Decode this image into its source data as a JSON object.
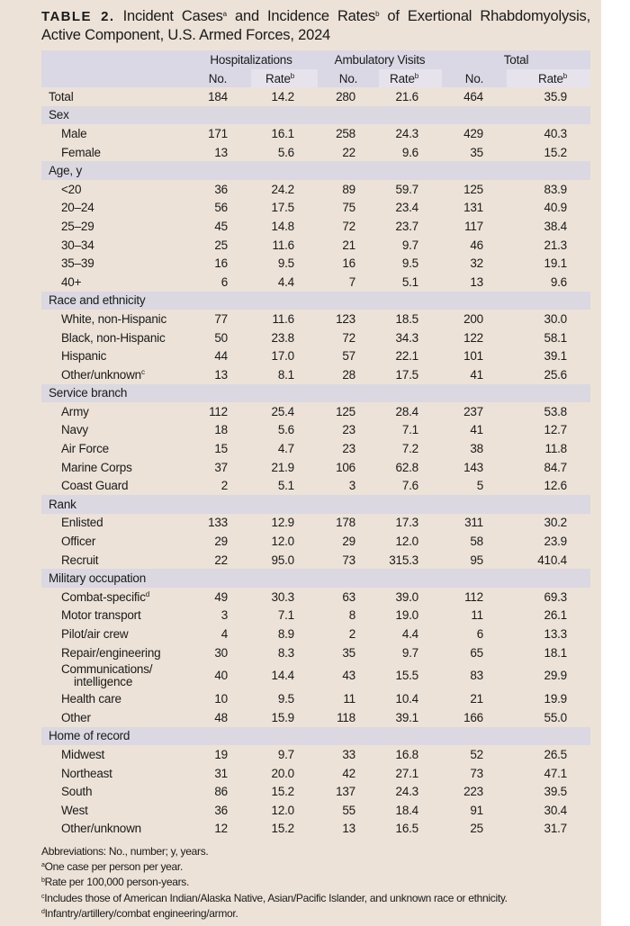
{
  "title": {
    "label": "TABLE 2.",
    "text_part1": " Incident Cases",
    "sup_a": "a",
    "text_part2": " and Incidence Rates",
    "sup_b": "b",
    "text_part3": " of Exertional Rhabdomyolysis, Active Component, U.S. Armed Forces, 2024"
  },
  "header": {
    "groups": [
      "Hospitalizations",
      "Ambulatory Visits",
      "Total"
    ],
    "no_label": "No.",
    "rate_label": "Rate",
    "rate_sup": "b"
  },
  "rows": [
    {
      "type": "total",
      "label": "Total",
      "values": [
        "184",
        "14.2",
        "280",
        "21.6",
        "464",
        "35.9"
      ]
    },
    {
      "type": "section",
      "label": "Sex"
    },
    {
      "type": "sub",
      "label": "Male",
      "values": [
        "171",
        "16.1",
        "258",
        "24.3",
        "429",
        "40.3"
      ]
    },
    {
      "type": "sub",
      "label": "Female",
      "values": [
        "13",
        "5.6",
        "22",
        "9.6",
        "35",
        "15.2"
      ]
    },
    {
      "type": "section",
      "label": "Age, y"
    },
    {
      "type": "sub",
      "label": "<20",
      "values": [
        "36",
        "24.2",
        "89",
        "59.7",
        "125",
        "83.9"
      ]
    },
    {
      "type": "sub",
      "label": "20–24",
      "values": [
        "56",
        "17.5",
        "75",
        "23.4",
        "131",
        "40.9"
      ]
    },
    {
      "type": "sub",
      "label": "25–29",
      "values": [
        "45",
        "14.8",
        "72",
        "23.7",
        "117",
        "38.4"
      ]
    },
    {
      "type": "sub",
      "label": "30–34",
      "values": [
        "25",
        "11.6",
        "21",
        "9.7",
        "46",
        "21.3"
      ]
    },
    {
      "type": "sub",
      "label": "35–39",
      "values": [
        "16",
        "9.5",
        "16",
        "9.5",
        "32",
        "19.1"
      ]
    },
    {
      "type": "sub",
      "label": "40+",
      "values": [
        "6",
        "4.4",
        "7",
        "5.1",
        "13",
        "9.6"
      ]
    },
    {
      "type": "section",
      "label": "Race and ethnicity"
    },
    {
      "type": "sub",
      "label": "White, non-Hispanic",
      "values": [
        "77",
        "11.6",
        "123",
        "18.5",
        "200",
        "30.0"
      ]
    },
    {
      "type": "sub",
      "label": "Black, non-Hispanic",
      "values": [
        "50",
        "23.8",
        "72",
        "34.3",
        "122",
        "58.1"
      ]
    },
    {
      "type": "sub",
      "label": "Hispanic",
      "values": [
        "44",
        "17.0",
        "57",
        "22.1",
        "101",
        "39.1"
      ]
    },
    {
      "type": "sub",
      "label": "Other/unknown",
      "sup": "c",
      "values": [
        "13",
        "8.1",
        "28",
        "17.5",
        "41",
        "25.6"
      ]
    },
    {
      "type": "section",
      "label": "Service branch"
    },
    {
      "type": "sub",
      "label": "Army",
      "values": [
        "112",
        "25.4",
        "125",
        "28.4",
        "237",
        "53.8"
      ]
    },
    {
      "type": "sub",
      "label": "Navy",
      "values": [
        "18",
        "5.6",
        "23",
        "7.1",
        "41",
        "12.7"
      ]
    },
    {
      "type": "sub",
      "label": "Air Force",
      "values": [
        "15",
        "4.7",
        "23",
        "7.2",
        "38",
        "11.8"
      ]
    },
    {
      "type": "sub",
      "label": "Marine Corps",
      "values": [
        "37",
        "21.9",
        "106",
        "62.8",
        "143",
        "84.7"
      ]
    },
    {
      "type": "sub",
      "label": "Coast Guard",
      "values": [
        "2",
        "5.1",
        "3",
        "7.6",
        "5",
        "12.6"
      ]
    },
    {
      "type": "section",
      "label": "Rank"
    },
    {
      "type": "sub",
      "label": "Enlisted",
      "values": [
        "133",
        "12.9",
        "178",
        "17.3",
        "311",
        "30.2"
      ]
    },
    {
      "type": "sub",
      "label": "Officer",
      "values": [
        "29",
        "12.0",
        "29",
        "12.0",
        "58",
        "23.9"
      ]
    },
    {
      "type": "sub",
      "label": "Recruit",
      "values": [
        "22",
        "95.0",
        "73",
        "315.3",
        "95",
        "410.4"
      ]
    },
    {
      "type": "section",
      "label": "Military occupation"
    },
    {
      "type": "sub",
      "label": "Combat-specific",
      "sup": "d",
      "values": [
        "49",
        "30.3",
        "63",
        "39.0",
        "112",
        "69.3"
      ]
    },
    {
      "type": "sub",
      "label": "Motor transport",
      "values": [
        "3",
        "7.1",
        "8",
        "19.0",
        "11",
        "26.1"
      ]
    },
    {
      "type": "sub",
      "label": "Pilot/air crew",
      "values": [
        "4",
        "8.9",
        "2",
        "4.4",
        "6",
        "13.3"
      ]
    },
    {
      "type": "sub",
      "label": "Repair/engineering",
      "values": [
        "30",
        "8.3",
        "35",
        "9.7",
        "65",
        "18.1"
      ]
    },
    {
      "type": "sub",
      "label": "Communications/",
      "label2": "intelligence",
      "values": [
        "40",
        "14.4",
        "43",
        "15.5",
        "83",
        "29.9"
      ]
    },
    {
      "type": "sub",
      "label": "Health care",
      "values": [
        "10",
        "9.5",
        "11",
        "10.4",
        "21",
        "19.9"
      ]
    },
    {
      "type": "sub",
      "label": "Other",
      "values": [
        "48",
        "15.9",
        "118",
        "39.1",
        "166",
        "55.0"
      ]
    },
    {
      "type": "section",
      "label": "Home of record"
    },
    {
      "type": "sub",
      "label": "Midwest",
      "values": [
        "19",
        "9.7",
        "33",
        "16.8",
        "52",
        "26.5"
      ]
    },
    {
      "type": "sub",
      "label": "Northeast",
      "values": [
        "31",
        "20.0",
        "42",
        "27.1",
        "73",
        "47.1"
      ]
    },
    {
      "type": "sub",
      "label": "South",
      "values": [
        "86",
        "15.2",
        "137",
        "24.3",
        "223",
        "39.5"
      ]
    },
    {
      "type": "sub",
      "label": "West",
      "values": [
        "36",
        "12.0",
        "55",
        "18.4",
        "91",
        "30.4"
      ]
    },
    {
      "type": "sub",
      "label": "Other/unknown",
      "values": [
        "12",
        "15.2",
        "13",
        "16.5",
        "25",
        "31.7"
      ]
    }
  ],
  "notes": [
    {
      "sup": "",
      "text": "Abbreviations: No., number; y, years."
    },
    {
      "sup": "a",
      "text": "One case per person per year."
    },
    {
      "sup": "b",
      "text": "Rate per 100,000 person-years."
    },
    {
      "sup": "c",
      "text": "Includes those of American Indian/Alaska Native, Asian/Pacific Islander, and unknown race or ethnicity."
    },
    {
      "sup": "d",
      "text": "Infantry/artillery/combat engineering/armor."
    }
  ]
}
